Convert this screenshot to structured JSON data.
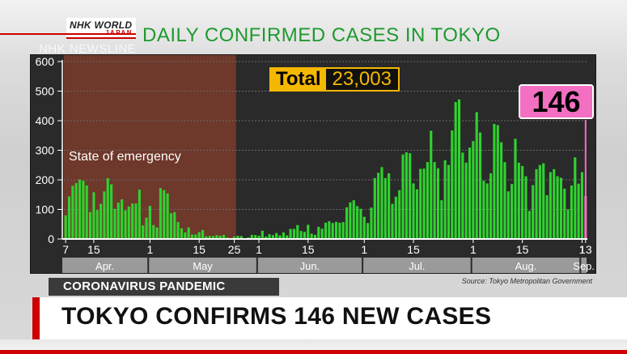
{
  "branding": {
    "logo_nhk": "NHK WORLD",
    "logo_japan": "JAPAN",
    "watermark": "NHK NEWSLINE"
  },
  "chart_data": {
    "type": "bar",
    "title": "DAILY CONFIRMED CASES IN TOKYO",
    "total_label": "Total",
    "total_value": "23,003",
    "latest_value": "146",
    "shaded_region_label": "State of emergency",
    "ylim": [
      0,
      600
    ],
    "yticks": [
      0,
      100,
      200,
      300,
      400,
      500,
      600
    ],
    "x_tick_labels": [
      "7",
      "15",
      "1",
      "15",
      "25",
      "1",
      "15",
      "1",
      "15",
      "1",
      "15",
      "1",
      "13"
    ],
    "months": [
      "Apr.",
      "May",
      "Jun.",
      "Jul.",
      "Aug.",
      "Sep."
    ],
    "dates": "2020-04-07 to 2020-09-13",
    "values": [
      80,
      144,
      180,
      189,
      201,
      197,
      181,
      91,
      158,
      98,
      119,
      161,
      206,
      185,
      102,
      123,
      134,
      97,
      110,
      120,
      120,
      167,
      46,
      72,
      112,
      47,
      39,
      172,
      165,
      154,
      87,
      91,
      57,
      36,
      22,
      39,
      15,
      15,
      23,
      30,
      9,
      10,
      10,
      13,
      11,
      14,
      5,
      3,
      8,
      11,
      10,
      2,
      5,
      14,
      13,
      11,
      28,
      8,
      16,
      13,
      20,
      12,
      22,
      12,
      34,
      34,
      47,
      27,
      24,
      48,
      18,
      14,
      41,
      35,
      55,
      60,
      54,
      58,
      55,
      57,
      107,
      124,
      131,
      111,
      102,
      75,
      54,
      106,
      206,
      224,
      243,
      206,
      222,
      119,
      143,
      165,
      286,
      293,
      290,
      188,
      168,
      237,
      238,
      260,
      366,
      260,
      239,
      131,
      266,
      250,
      367,
      463,
      472,
      292,
      258,
      309,
      331,
      429,
      360,
      197,
      188,
      222,
      389,
      385,
      327,
      260,
      161,
      186,
      339,
      258,
      247,
      212,
      95,
      182,
      236,
      250,
      256,
      148,
      226,
      236,
      212,
      207,
      170,
      100,
      181,
      276,
      187,
      226,
      146
    ]
  },
  "source": "Source: Tokyo Metropolitan Government",
  "subject": "CORONAVIRUS PANDEMIC",
  "headline": "TOKYO CONFIRMS 146 NEW CASES",
  "colors": {
    "bar": "#2fd22f",
    "latest_bar": "#f26fc1",
    "emergency": "#7a3b2c",
    "title": "#1e9a2e",
    "accent": "#f5b800",
    "brand_red": "#cc0000"
  }
}
